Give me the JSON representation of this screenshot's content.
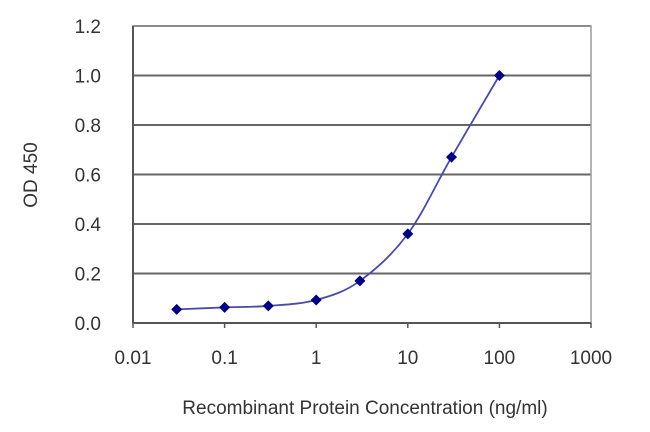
{
  "chart_data": {
    "type": "line",
    "title": "",
    "xlabel": "Recombinant Protein Concentration (ng/ml)",
    "ylabel": "OD 450",
    "x_scale": "log",
    "xlim": [
      0.01,
      1000
    ],
    "ylim": [
      0.0,
      1.2
    ],
    "x_ticks": [
      0.01,
      0.1,
      1,
      10,
      100,
      1000
    ],
    "x_tick_labels": [
      "0.01",
      "0.1",
      "1",
      "10",
      "100",
      "1000"
    ],
    "y_ticks": [
      0.0,
      0.2,
      0.4,
      0.6,
      0.8,
      1.0,
      1.2
    ],
    "y_tick_labels": [
      "0.0",
      "0.2",
      "0.4",
      "0.6",
      "0.8",
      "1.0",
      "1.2"
    ],
    "grid": "horizontal",
    "legend": "none",
    "series": [
      {
        "name": "OD 450",
        "color": "#000080",
        "line_color": "#4a4aa8",
        "marker": "diamond",
        "x": [
          0.03,
          0.1,
          0.3,
          1,
          3,
          10,
          30,
          100
        ],
        "values": [
          0.055,
          0.063,
          0.069,
          0.093,
          0.17,
          0.36,
          0.67,
          1.0
        ]
      }
    ]
  }
}
